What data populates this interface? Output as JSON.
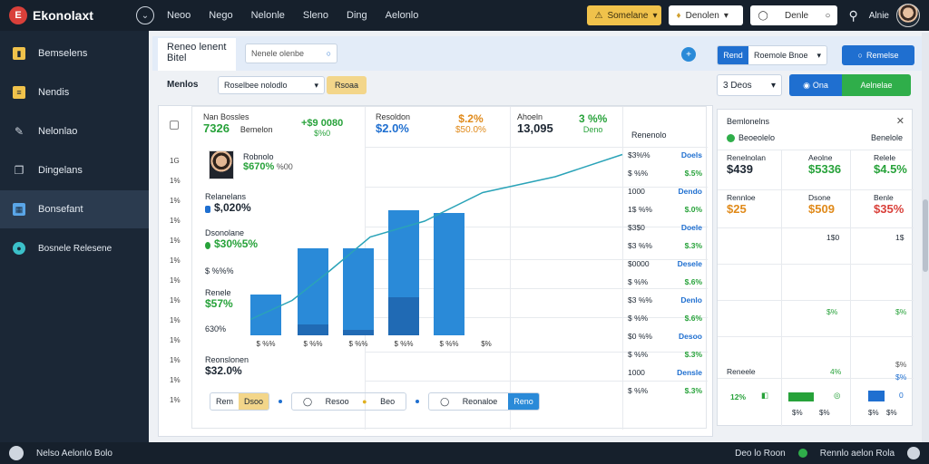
{
  "header": {
    "logo_text": "Ekonolaxt",
    "logo_mark": "E",
    "nav": [
      "Neoo",
      "Nego",
      "Nelonle",
      "Sleno",
      "Ding",
      "Aelonlo"
    ],
    "btn_yellow": "Somelane",
    "btn_white": "Denolen",
    "search_label": "Denle",
    "user_name": "Alnie"
  },
  "sidebar": {
    "items": [
      {
        "label": "Bemselens",
        "icon": "layout-icon",
        "color": "#f0c24b"
      },
      {
        "label": "Nendis",
        "icon": "document-icon",
        "color": "#f0c24b"
      },
      {
        "label": "Nelonlao",
        "icon": "edit-icon",
        "color": "#cfd6df"
      },
      {
        "label": "Dingelans",
        "icon": "copy-icon",
        "color": "#cfd6df"
      },
      {
        "label": "Bonsefant",
        "icon": "grid-icon",
        "color": "#5aa6e8"
      },
      {
        "label": "Bosnele Relesene",
        "icon": "globe-icon",
        "color": "#3bc0c9"
      }
    ],
    "active_index": 4
  },
  "toolbar": {
    "title_line1": "Reneo lenent",
    "title_line2": "Bitel",
    "search_value": "Nenele olenbe",
    "seg_left": "Rend",
    "seg_right": "Roemole Bnoe",
    "primary_label": "Remelse"
  },
  "row2": {
    "label": "Menlos",
    "dropdown_value": "Roselbee nolodlo",
    "yellow_btn": "Rsoaa",
    "dropdown2_value": "3 Deos",
    "btn_a": "Ona",
    "btn_g": "Aelnelae"
  },
  "card": {
    "y_ticks": [
      "1G",
      "1%",
      "1%",
      "1%",
      "1%",
      "1%",
      "1%",
      "1%",
      "1%",
      "1%",
      "1%",
      "1%",
      "1%"
    ],
    "stats": [
      {
        "title": "Nan Bossles",
        "value": "7326",
        "sub": "Bemelon",
        "delta": "+$9 0080",
        "delta_sub": "$%0"
      },
      {
        "title": "Resoldon",
        "value": "$2.0%",
        "sub": "",
        "delta": "$.2%",
        "delta_sub": "$50.0%"
      },
      {
        "title": "Ahoeln",
        "value": "13,095",
        "sub": "",
        "delta": "3 %%",
        "delta_sub": "Deno"
      }
    ],
    "person_name": "Robnolo",
    "person_value": "$670%",
    "person_sub": "%00",
    "metrics": [
      {
        "title": "Relanelans",
        "value": "$,020%",
        "color": "#1f6fd0"
      },
      {
        "title": "Dsonolane",
        "value": "$30%5%",
        "color": "#27a23a"
      },
      {
        "title": "$ %%%",
        "value": "",
        "color": ""
      },
      {
        "title": "Renele",
        "value": "$57%",
        "color": ""
      },
      {
        "title": "630%",
        "value": "",
        "color": ""
      },
      {
        "title": "Reonslonen",
        "value": "$32.0%",
        "color": ""
      }
    ],
    "x_labels": [
      "$ %%",
      "$ %%",
      "$ %%",
      "$ %%",
      "$ %%",
      "$%"
    ],
    "right_head": "Renenolo",
    "right_rows": [
      {
        "a": "$3%%",
        "b": "Doels"
      },
      {
        "a": "$ %%",
        "b": "$.5%"
      },
      {
        "a": "1000",
        "b": "Dendo"
      },
      {
        "a": "1$ %%",
        "b": "$.0%"
      },
      {
        "a": "$3$0",
        "b": "Doele"
      },
      {
        "a": "$3 %%",
        "b": "$.3%"
      },
      {
        "a": "$0000",
        "b": "Desele"
      },
      {
        "a": "$ %%",
        "b": "$.6%"
      },
      {
        "a": "$3 %%",
        "b": "Denlo"
      },
      {
        "a": "$ %%",
        "b": "$.6%"
      },
      {
        "a": "$0 %%",
        "b": "Desoo"
      },
      {
        "a": "$ %%",
        "b": "$.3%"
      },
      {
        "a": "1000",
        "b": "Densle"
      },
      {
        "a": "$ %%",
        "b": "$.3%"
      }
    ],
    "footer": [
      {
        "a": "Rem",
        "b": "Dsoo"
      },
      {
        "a": "Resoo",
        "b": "Beo"
      },
      {
        "a": "Reonaloe",
        "b": "Reno"
      }
    ]
  },
  "chart_data": {
    "type": "bar",
    "categories": [
      "$ %%",
      "$ %%",
      "$ %%",
      "$ %%",
      "$ %%"
    ],
    "series": [
      {
        "values": [
          30,
          64,
          64,
          92,
          90
        ],
        "color": "#2a8ad8"
      },
      {
        "values": [
          0,
          8,
          4,
          28,
          0
        ],
        "color": "#1d5fa8"
      }
    ],
    "line": [
      10,
      22,
      40,
      62,
      72,
      90,
      100,
      114
    ],
    "ylim": [
      0,
      120
    ]
  },
  "rpanel": {
    "title": "Bemlonelns",
    "sub": "Beoeolelo",
    "right": "Benelole",
    "header_cells": [
      {
        "t": "Renelnolan",
        "v": "$439",
        "c": "#1d2733"
      },
      {
        "t": "Aeolne",
        "v": "$5336",
        "c": "#27a23a"
      },
      {
        "t": "Relele",
        "v": "$4.5%",
        "c": "#27a23a"
      }
    ],
    "row2_cells": [
      {
        "t": "Rennloe",
        "v": "$25",
        "c": "#e08a1a"
      },
      {
        "t": "Dsone",
        "v": "$509",
        "c": "#e08a1a"
      },
      {
        "t": "Benle",
        "v": "$35%",
        "c": "#d9403a"
      }
    ],
    "small_rows": [
      "1$0",
      "1$",
      "$%",
      "$%",
      "$%",
      "$%"
    ],
    "foot_label": "Reneele",
    "foot_pct": "4%",
    "foot_val": "12%",
    "foot_cells": [
      "$%",
      "$%",
      "$%",
      "$%"
    ],
    "foot_last": "0"
  },
  "footer": {
    "left": "Nelso Aelonlo Bolo",
    "right1": "Deo lo Roon",
    "right2": "Rennlo aelon Rola"
  }
}
